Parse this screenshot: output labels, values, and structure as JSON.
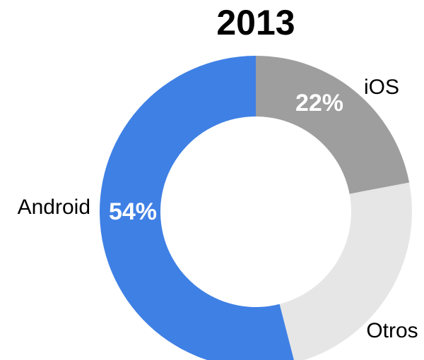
{
  "chart_data": {
    "type": "donut",
    "title": "2013",
    "categories": [
      "iOS",
      "Otros",
      "Android"
    ],
    "values": [
      22,
      24,
      54
    ],
    "value_labels": [
      "22%",
      null,
      "54%"
    ],
    "colors": [
      "#9e9e9e",
      "#e6e6e6",
      "#3f80e5"
    ]
  }
}
